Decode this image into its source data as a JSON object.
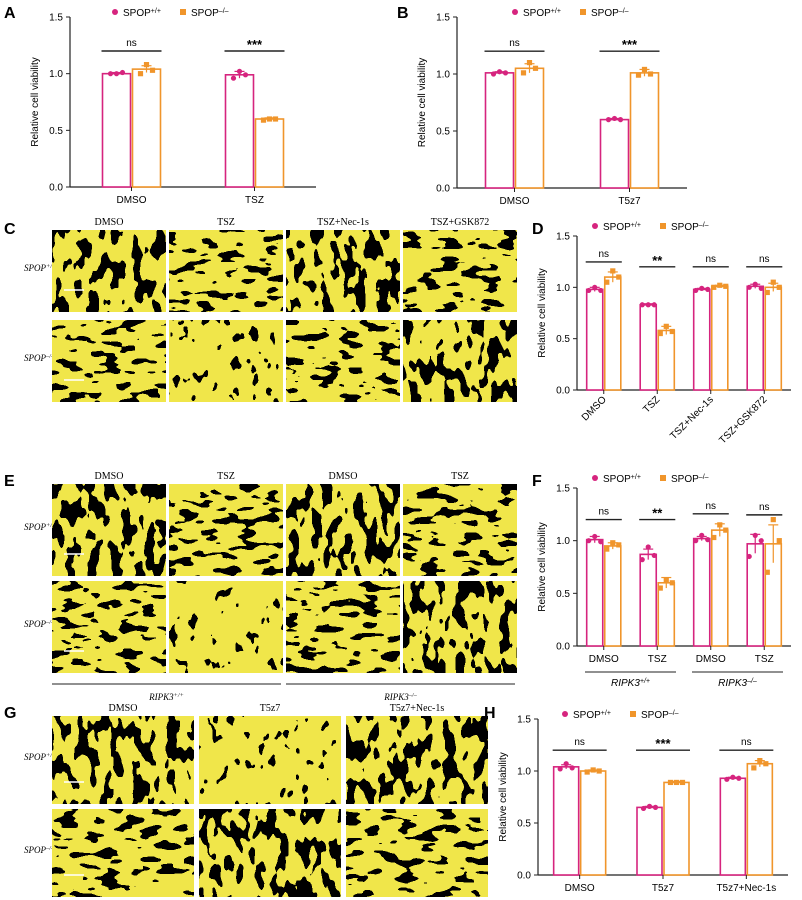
{
  "colors": {
    "wt": "#d6247e",
    "ko": "#f0952b",
    "axis": "#222222",
    "micro_yellow": "#f0e64a",
    "micro_dark": "#2e2640"
  },
  "legend_labels": {
    "wt_base": "SPOP",
    "wt_sup": "+/+",
    "ko_base": "SPOP",
    "ko_sup": "–/–"
  },
  "panel_letters": {
    "A": "A",
    "B": "B",
    "C": "C",
    "D": "D",
    "E": "E",
    "F": "F",
    "G": "G",
    "H": "H"
  },
  "micrographs": {
    "C": {
      "columns": [
        "DMSO",
        "TSZ",
        "TSZ+Nec-1s",
        "TSZ+GSK872"
      ],
      "rows": [
        {
          "base": "SPOP",
          "sup": "+/+"
        },
        {
          "base": "SPOP",
          "sup": "–/–"
        }
      ]
    },
    "E": {
      "columns": [
        "DMSO",
        "TSZ",
        "DMSO",
        "TSZ"
      ],
      "rows": [
        {
          "base": "SPOP",
          "sup": "+/+"
        },
        {
          "base": "SPOP",
          "sup": "–/–"
        }
      ],
      "groups": [
        {
          "base": "RIPK3",
          "sup": "+/+"
        },
        {
          "base": "RIPK3",
          "sup": "–/–"
        }
      ]
    },
    "G": {
      "columns": [
        "DMSO",
        "T5z7",
        "T5z7+Nec-1s"
      ],
      "rows": [
        {
          "base": "SPOP",
          "sup": "+/+"
        },
        {
          "base": "SPOP",
          "sup": "–/–"
        }
      ]
    }
  },
  "chart_data": [
    {
      "panel": "A",
      "type": "bar",
      "ylabel": "Relative cell viability",
      "ylim": [
        0,
        1.5
      ],
      "yticks": [
        "0.0",
        "0.5",
        "1.0",
        "1.5"
      ],
      "categories": [
        "DMSO",
        "TSZ"
      ],
      "series": [
        {
          "name": "SPOP+/+",
          "values": [
            1.0,
            0.99
          ],
          "err": [
            0.01,
            0.03
          ],
          "points": [
            [
              1.0,
              1.0,
              1.01
            ],
            [
              0.96,
              1.02,
              0.99
            ]
          ]
        },
        {
          "name": "SPOP-/-",
          "values": [
            1.04,
            0.6
          ],
          "err": [
            0.03,
            0.01
          ],
          "points": [
            [
              1.0,
              1.08,
              1.03
            ],
            [
              0.59,
              0.6,
              0.6
            ]
          ]
        }
      ],
      "significance": [
        "ns",
        "***"
      ]
    },
    {
      "panel": "B",
      "type": "bar",
      "ylabel": "Relative cell viability",
      "ylim": [
        0,
        1.5
      ],
      "yticks": [
        "0.0",
        "0.5",
        "1.0",
        "1.5"
      ],
      "categories": [
        "DMSO",
        "T5z7"
      ],
      "series": [
        {
          "name": "SPOP+/+",
          "values": [
            1.01,
            0.6
          ],
          "err": [
            0.01,
            0.01
          ],
          "points": [
            [
              1.0,
              1.02,
              1.01
            ],
            [
              0.6,
              0.61,
              0.6
            ]
          ]
        },
        {
          "name": "SPOP-/-",
          "values": [
            1.05,
            1.01
          ],
          "err": [
            0.04,
            0.03
          ],
          "points": [
            [
              1.01,
              1.1,
              1.05
            ],
            [
              0.99,
              1.04,
              1.0
            ]
          ]
        }
      ],
      "significance": [
        "ns",
        "***"
      ]
    },
    {
      "panel": "D",
      "type": "bar",
      "ylabel": "Relative cell viability",
      "ylim": [
        0,
        1.5
      ],
      "yticks": [
        "0.0",
        "0.5",
        "1.0",
        "1.5"
      ],
      "categories": [
        "DMSO",
        "TSZ",
        "TSZ+Nec-1s",
        "TSZ+GSK872"
      ],
      "rotate_x": true,
      "series": [
        {
          "name": "SPOP+/+",
          "values": [
            0.98,
            0.83,
            0.98,
            1.01
          ],
          "err": [
            0.02,
            0.01,
            0.01,
            0.02
          ],
          "points": [
            [
              0.97,
              1.0,
              0.97
            ],
            [
              0.83,
              0.83,
              0.83
            ],
            [
              0.97,
              0.99,
              0.98
            ],
            [
              1.0,
              1.03,
              0.99
            ]
          ]
        },
        {
          "name": "SPOP-/-",
          "values": [
            1.1,
            0.58,
            1.01,
            1.0
          ],
          "err": [
            0.05,
            0.04,
            0.01,
            0.04
          ],
          "points": [
            [
              1.05,
              1.16,
              1.1
            ],
            [
              0.55,
              0.62,
              0.57
            ],
            [
              1.0,
              1.02,
              1.01
            ],
            [
              0.95,
              1.05,
              1.0
            ]
          ]
        }
      ],
      "significance": [
        "ns",
        "**",
        "ns",
        "ns"
      ]
    },
    {
      "panel": "F",
      "type": "bar",
      "ylabel": "Relative cell viability",
      "ylim": [
        0,
        1.5
      ],
      "yticks": [
        "0.0",
        "0.5",
        "1.0",
        "1.5"
      ],
      "categories": [
        "DMSO",
        "TSZ",
        "DMSO",
        "TSZ"
      ],
      "groups": [
        {
          "base": "RIPK3",
          "sup": "+/+"
        },
        {
          "base": "RIPK3",
          "sup": "–/–"
        }
      ],
      "series": [
        {
          "name": "SPOP+/+",
          "values": [
            1.01,
            0.87,
            1.02,
            0.97
          ],
          "err": [
            0.03,
            0.05,
            0.02,
            0.09
          ],
          "points": [
            [
              1.0,
              1.04,
              0.99
            ],
            [
              0.82,
              0.94,
              0.86
            ],
            [
              1.0,
              1.05,
              1.01
            ],
            [
              0.85,
              1.05,
              1.0
            ]
          ]
        },
        {
          "name": "SPOP-/-",
          "values": [
            0.95,
            0.6,
            1.1,
            0.97
          ],
          "err": [
            0.03,
            0.05,
            0.06,
            0.18
          ],
          "points": [
            [
              0.92,
              0.98,
              0.96
            ],
            [
              0.55,
              0.63,
              0.6
            ],
            [
              1.03,
              1.15,
              1.1
            ],
            [
              0.7,
              1.2,
              1.0
            ]
          ]
        }
      ],
      "significance": [
        "ns",
        "**",
        "ns",
        "ns"
      ]
    },
    {
      "panel": "H",
      "type": "bar",
      "ylabel": "Relative cell viability",
      "ylim": [
        0,
        1.5
      ],
      "yticks": [
        "0.0",
        "0.5",
        "1.0",
        "1.5"
      ],
      "categories": [
        "DMSO",
        "T5z7",
        "T5z7+Nec-1s"
      ],
      "series": [
        {
          "name": "SPOP+/+",
          "values": [
            1.04,
            0.65,
            0.93
          ],
          "err": [
            0.02,
            0.01,
            0.01
          ],
          "points": [
            [
              1.02,
              1.07,
              1.03
            ],
            [
              0.64,
              0.66,
              0.65
            ],
            [
              0.92,
              0.94,
              0.93
            ]
          ]
        },
        {
          "name": "SPOP-/-",
          "values": [
            1.0,
            0.89,
            1.07
          ],
          "err": [
            0.01,
            0.01,
            0.03
          ],
          "points": [
            [
              0.99,
              1.01,
              1.0
            ],
            [
              0.89,
              0.89,
              0.89
            ],
            [
              1.03,
              1.1,
              1.07
            ]
          ]
        }
      ],
      "significance": [
        "ns",
        "***",
        "ns"
      ]
    }
  ]
}
